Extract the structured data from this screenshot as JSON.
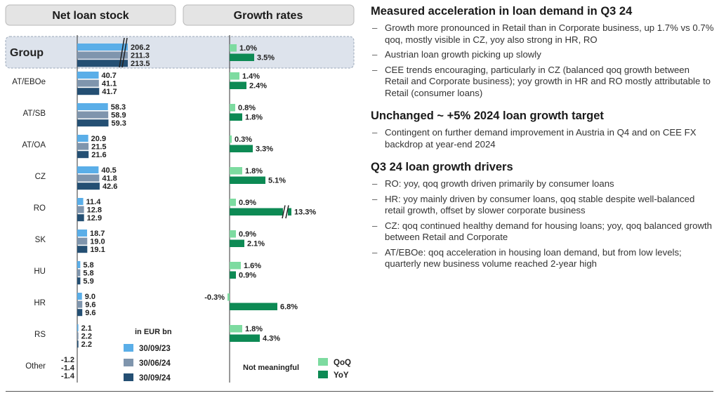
{
  "chart_data": [
    {
      "type": "bar",
      "orientation": "horizontal",
      "title": "Net loan stock",
      "unit_label": "in EUR bn",
      "categories": [
        "Group",
        "AT/EBOe",
        "AT/SB",
        "AT/OA",
        "CZ",
        "RO",
        "SK",
        "HU",
        "HR",
        "RS",
        "Other"
      ],
      "series": [
        {
          "name": "30/09/23",
          "color": "#5aaee8",
          "values": [
            206.2,
            40.7,
            58.3,
            20.9,
            40.5,
            11.4,
            18.7,
            5.8,
            9.0,
            2.1,
            -1.2
          ]
        },
        {
          "name": "30/06/24",
          "color": "#7f95ad",
          "values": [
            211.3,
            41.1,
            58.9,
            21.5,
            41.8,
            12.8,
            19.0,
            5.8,
            9.6,
            2.2,
            -1.4
          ]
        },
        {
          "name": "30/09/24",
          "color": "#244f73",
          "values": [
            213.5,
            41.7,
            59.3,
            21.6,
            42.6,
            12.9,
            19.1,
            5.9,
            9.6,
            2.2,
            -1.4
          ]
        }
      ],
      "labels": [
        [
          "206.2",
          "211.3",
          "213.5"
        ],
        [
          "40.7",
          "41.1",
          "41.7"
        ],
        [
          "58.3",
          "58.9",
          "59.3"
        ],
        [
          "20.9",
          "21.5",
          "21.6"
        ],
        [
          "40.5",
          "41.8",
          "42.6"
        ],
        [
          "11.4",
          "12.8",
          "12.9"
        ],
        [
          "18.7",
          "19.0",
          "19.1"
        ],
        [
          "5.8",
          "5.8",
          "5.9"
        ],
        [
          "9.0",
          "9.6",
          "9.6"
        ],
        [
          "2.1",
          "2.2",
          "2.2"
        ],
        [
          "-1.2",
          "-1.4",
          "-1.4"
        ]
      ],
      "broken_axis_categories": [
        "Group"
      ]
    },
    {
      "type": "bar",
      "orientation": "horizontal",
      "title": "Growth rates",
      "categories": [
        "Group",
        "AT/EBOe",
        "AT/SB",
        "AT/OA",
        "CZ",
        "RO",
        "SK",
        "HU",
        "HR",
        "RS",
        "Other"
      ],
      "series": [
        {
          "name": "QoQ",
          "color": "#7ddba0",
          "values": [
            1.0,
            1.4,
            0.8,
            0.3,
            1.8,
            0.9,
            0.9,
            1.6,
            -0.3,
            1.8,
            null
          ]
        },
        {
          "name": "YoY",
          "color": "#0d8a54",
          "values": [
            3.5,
            2.4,
            1.8,
            3.3,
            5.1,
            13.3,
            2.1,
            0.9,
            6.8,
            4.3,
            null
          ]
        }
      ],
      "labels": [
        [
          "1.0%",
          "3.5%"
        ],
        [
          "1.4%",
          "2.4%"
        ],
        [
          "0.8%",
          "1.8%"
        ],
        [
          "0.3%",
          "3.3%"
        ],
        [
          "1.8%",
          "5.1%"
        ],
        [
          "0.9%",
          "13.3%"
        ],
        [
          "0.9%",
          "2.1%"
        ],
        [
          "1.6%",
          "0.9%"
        ],
        [
          "-0.3%",
          "6.8%"
        ],
        [
          "1.8%",
          "4.3%"
        ],
        [
          "",
          ""
        ]
      ],
      "not_meaningful_label": "Not meaningful",
      "broken_axis_categories": [
        "RO"
      ]
    }
  ],
  "right_panel": [
    {
      "title": "Measured acceleration in loan demand in Q3 24",
      "bullets": [
        "Growth more pronounced in Retail than in Corporate business, up 1.7% vs 0.7% qoq, mostly visible in CZ, yoy also strong in HR, RO",
        "Austrian loan growth picking up slowly",
        "CEE trends encouraging, particularly in CZ (balanced qoq growth between Retail and Corporate business); yoy growth in HR and RO mostly attributable to Retail (consumer loans)"
      ]
    },
    {
      "title": "Unchanged ~ +5% 2024 loan growth target",
      "bullets": [
        "Contingent on further demand improvement in Austria in Q4 and on CEE FX backdrop at year-end 2024"
      ]
    },
    {
      "title": "Q3 24 loan growth drivers",
      "bullets": [
        "RO: yoy, qoq growth driven primarily by consumer loans",
        "HR: yoy mainly driven by consumer loans, qoq stable despite well-balanced retail growth, offset by slower corporate business",
        "CZ: qoq continued healthy demand for housing loans; yoy, qoq balanced growth between Retail and Corporate",
        "AT/EBOe: qoq acceleration in housing loan demand, but from low levels; quarterly new business volume reached 2-year high"
      ]
    }
  ]
}
